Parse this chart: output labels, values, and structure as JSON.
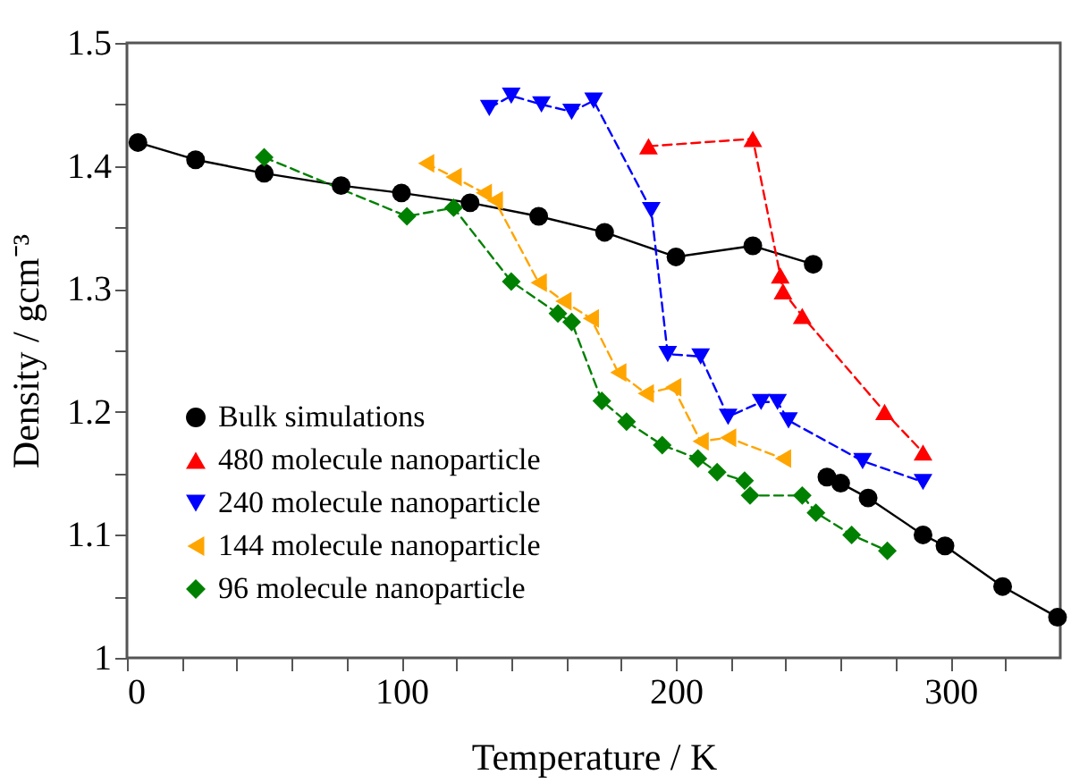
{
  "chart_data": {
    "type": "line",
    "xlabel": "Temperature  / K",
    "ylabel": "Density / gcm⁻³",
    "xlim": [
      0,
      340
    ],
    "ylim": [
      1,
      1.5
    ],
    "xticks": [
      0,
      {
        "value": 20,
        "label": null
      },
      {
        "value": 40,
        "label": null
      },
      {
        "value": 60,
        "label": null
      },
      {
        "value": 80,
        "label": null
      },
      100,
      {
        "value": 120,
        "label": null
      },
      {
        "value": 140,
        "label": null
      },
      {
        "value": 160,
        "label": null
      },
      {
        "value": 180,
        "label": null
      },
      200,
      {
        "value": 220,
        "label": null
      },
      {
        "value": 240,
        "label": null
      },
      {
        "value": 260,
        "label": null
      },
      {
        "value": 280,
        "label": null
      },
      300,
      {
        "value": 320,
        "label": null
      }
    ],
    "yticks": [
      1,
      {
        "value": 1.05,
        "label": null
      },
      1.1,
      {
        "value": 1.15,
        "label": null
      },
      1.2,
      {
        "value": 1.25,
        "label": null
      },
      1.3,
      {
        "value": 1.35,
        "label": null
      },
      1.4,
      {
        "value": 1.45,
        "label": null
      },
      1.5
    ],
    "legend": "bottom left",
    "grid": false,
    "series": [
      {
        "name": "Bulk simulations",
        "color": "#000000",
        "marker": "circle",
        "line_style": "solid",
        "x": [
          4,
          25,
          50,
          78,
          100,
          125,
          150,
          174,
          200,
          228,
          250,
          252,
          255,
          260,
          270,
          290,
          298,
          319,
          339
        ],
        "values": [
          1.419,
          1.405,
          1.394,
          1.384,
          1.378,
          1.37,
          1.359,
          1.346,
          1.326,
          1.335,
          1.32,
          null,
          1.147,
          1.142,
          1.13,
          1.1,
          1.091,
          1.058,
          1.033
        ]
      },
      {
        "name": "480 molecule nanoparticle",
        "color": "#ff0000",
        "marker": "triangle",
        "line_style": "dashed",
        "x": [
          190,
          228,
          238,
          239,
          246,
          276,
          290
        ],
        "values": [
          1.416,
          1.422,
          1.311,
          1.298,
          1.278,
          1.2,
          1.167
        ]
      },
      {
        "name": "240 molecule nanoparticle",
        "color": "#0000ff",
        "marker": "triangle-down",
        "line_style": "dashed",
        "x": [
          132,
          140,
          151,
          162,
          170,
          191,
          197,
          209,
          219,
          231,
          237,
          241,
          268,
          290
        ],
        "values": [
          1.447,
          1.457,
          1.45,
          1.444,
          1.453,
          1.364,
          1.247,
          1.245,
          1.196,
          1.208,
          1.208,
          1.193,
          1.16,
          1.143
        ]
      },
      {
        "name": "144 molecule nanoparticle",
        "color": "#ffa500",
        "marker": "triangle-left",
        "line_style": "dashed",
        "x": [
          109,
          119,
          130,
          134,
          150,
          159,
          169,
          179,
          189,
          199,
          209,
          219,
          239
        ],
        "values": [
          1.402,
          1.391,
          1.378,
          1.372,
          1.305,
          1.29,
          1.276,
          1.232,
          1.215,
          1.22,
          1.176,
          1.179,
          1.162
        ]
      },
      {
        "name": "96 molecule nanoparticle",
        "color": "#008000",
        "marker": "diamond",
        "line_style": "dashed",
        "x": [
          50,
          102,
          119,
          140,
          157,
          162,
          173,
          182,
          195,
          208,
          215,
          225,
          227,
          246,
          251,
          264,
          277
        ],
        "values": [
          1.407,
          1.359,
          1.366,
          1.306,
          1.28,
          1.273,
          1.209,
          1.192,
          1.173,
          1.162,
          1.151,
          1.144,
          1.132,
          1.132,
          1.118,
          1.1,
          1.087
        ]
      }
    ]
  }
}
